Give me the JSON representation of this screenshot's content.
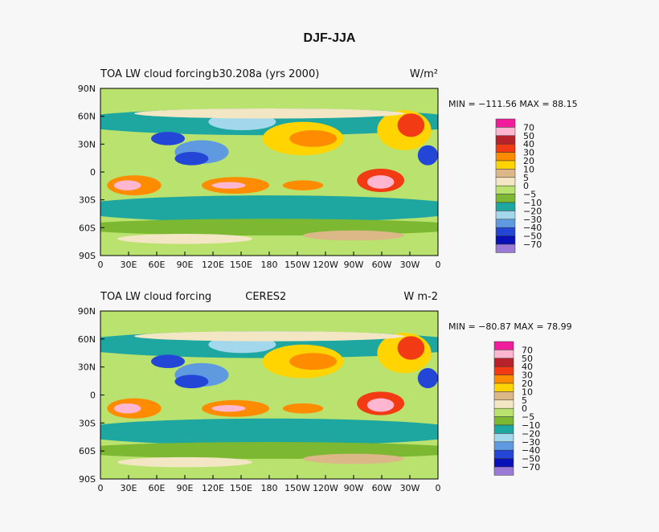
{
  "title": "DJF-JJA",
  "colorbar_colors": [
    "#f01c9c",
    "#ffb6d0",
    "#b8222a",
    "#f23a14",
    "#ff8c00",
    "#ffd400",
    "#dcb787",
    "#f3e6c4",
    "#b9e26e",
    "#7cb832",
    "#1ea6a0",
    "#a3d8ec",
    "#5f9ae0",
    "#2346d6",
    "#0a10b8",
    "#9a7ad6"
  ],
  "panels": [
    {
      "title_left": "TOA LW cloud forcing",
      "title_center": "b30.208a (yrs 2000)",
      "units": "W/m²",
      "min_max": "MIN = −111.56 MAX =  88.15",
      "xticks": [
        "0",
        "30E",
        "60E",
        "90E",
        "120E",
        "150E",
        "180",
        "150W",
        "120W",
        "90W",
        "60W",
        "30W",
        "0"
      ],
      "yticks": [
        "90N",
        "60N",
        "30N",
        "0",
        "30S",
        "60S",
        "90S"
      ],
      "colorbar_labels": [
        "70",
        "50",
        "40",
        "30",
        "20",
        "10",
        "5",
        "0",
        "−5",
        "−10",
        "−20",
        "−30",
        "−40",
        "−50",
        "−70"
      ]
    },
    {
      "title_left": "TOA LW cloud forcing",
      "title_center": "CERES2",
      "units": "W m-2",
      "min_max": "MIN = −80.87 MAX =  78.99",
      "xticks": [
        "0",
        "30E",
        "60E",
        "90E",
        "120E",
        "150E",
        "180",
        "150W",
        "120W",
        "90W",
        "60W",
        "30W",
        "0"
      ],
      "yticks": [
        "90N",
        "60N",
        "30N",
        "0",
        "30S",
        "60S",
        "90S"
      ],
      "colorbar_labels": [
        "70",
        "50",
        "40",
        "30",
        "20",
        "10",
        "5",
        "0",
        "−5",
        "−10",
        "−20",
        "−30",
        "−40",
        "−50",
        "−70"
      ]
    }
  ]
}
